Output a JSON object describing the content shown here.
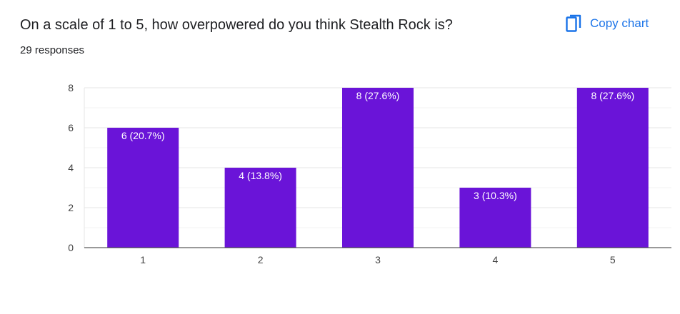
{
  "header": {
    "question": "On a scale of 1 to 5, how overpowered do you think Stealth Rock is?",
    "responses": "29 responses",
    "copy_label": "Copy chart",
    "copy_icon": "copy-icon",
    "accent_color": "#1a73e8"
  },
  "chart_data": {
    "type": "bar",
    "title": "",
    "xlabel": "",
    "ylabel": "",
    "categories": [
      "1",
      "2",
      "3",
      "4",
      "5"
    ],
    "values": [
      6,
      4,
      8,
      3,
      8
    ],
    "data_labels": [
      "6 (20.7%)",
      "4 (13.8%)",
      "8 (27.6%)",
      "3 (10.3%)",
      "8 (27.6%)"
    ],
    "ylim": [
      0,
      8
    ],
    "yticks": [
      0,
      2,
      4,
      6,
      8
    ],
    "grid": true,
    "bar_color": "#6a14d8"
  }
}
